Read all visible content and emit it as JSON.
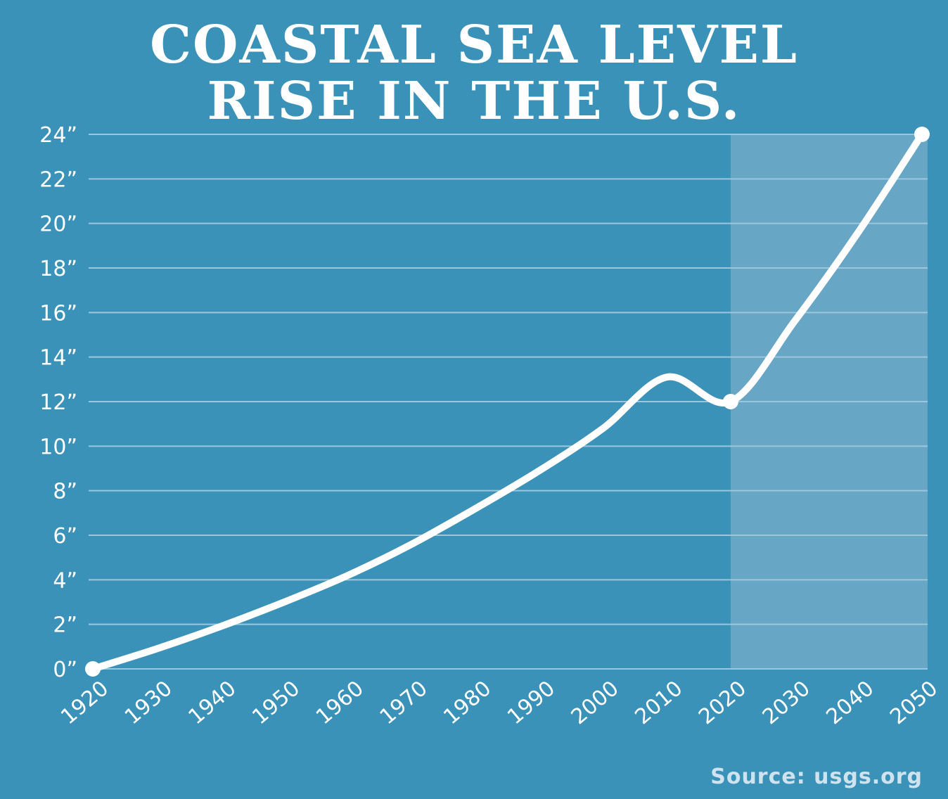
{
  "title_line1": "COASTAL SEA LEVEL",
  "title_line2": "RISE IN THE U.S.",
  "source": "Source: usgs.org",
  "colors": {
    "background": "#3b92b8",
    "projection_band": "#68a6c6",
    "gridline": "#9cc6dc",
    "line": "#ffffff"
  },
  "chart_data": {
    "type": "line",
    "title": "COASTAL SEA LEVEL RISE IN THE U.S.",
    "xlabel": "",
    "ylabel": "",
    "x_ticks": [
      "1920",
      "1930",
      "1940",
      "1950",
      "1960",
      "1970",
      "1980",
      "1990",
      "2000",
      "2010",
      "2020",
      "2030",
      "2040",
      "2050"
    ],
    "y_ticks": [
      "0”",
      "2”",
      "4”",
      "6”",
      "8”",
      "10”",
      "12”",
      "14”",
      "16”",
      "18”",
      "20”",
      "22”",
      "24”"
    ],
    "xlim": [
      1920,
      2050
    ],
    "ylim": [
      0,
      24
    ],
    "grid": true,
    "projection_shaded_range": [
      2020,
      2050
    ],
    "series": [
      {
        "x": [
          1920,
          1930,
          1940,
          1950,
          1960,
          1970,
          1980,
          1990,
          2000,
          2010,
          2020,
          2030,
          2040,
          2050
        ],
        "y": [
          0,
          0.9,
          1.9,
          3.0,
          4.2,
          5.6,
          7.2,
          8.9,
          10.8,
          13.1,
          12.0,
          15.6,
          19.6,
          24.0
        ],
        "markers_at": [
          1920,
          2020,
          2050
        ]
      }
    ]
  }
}
